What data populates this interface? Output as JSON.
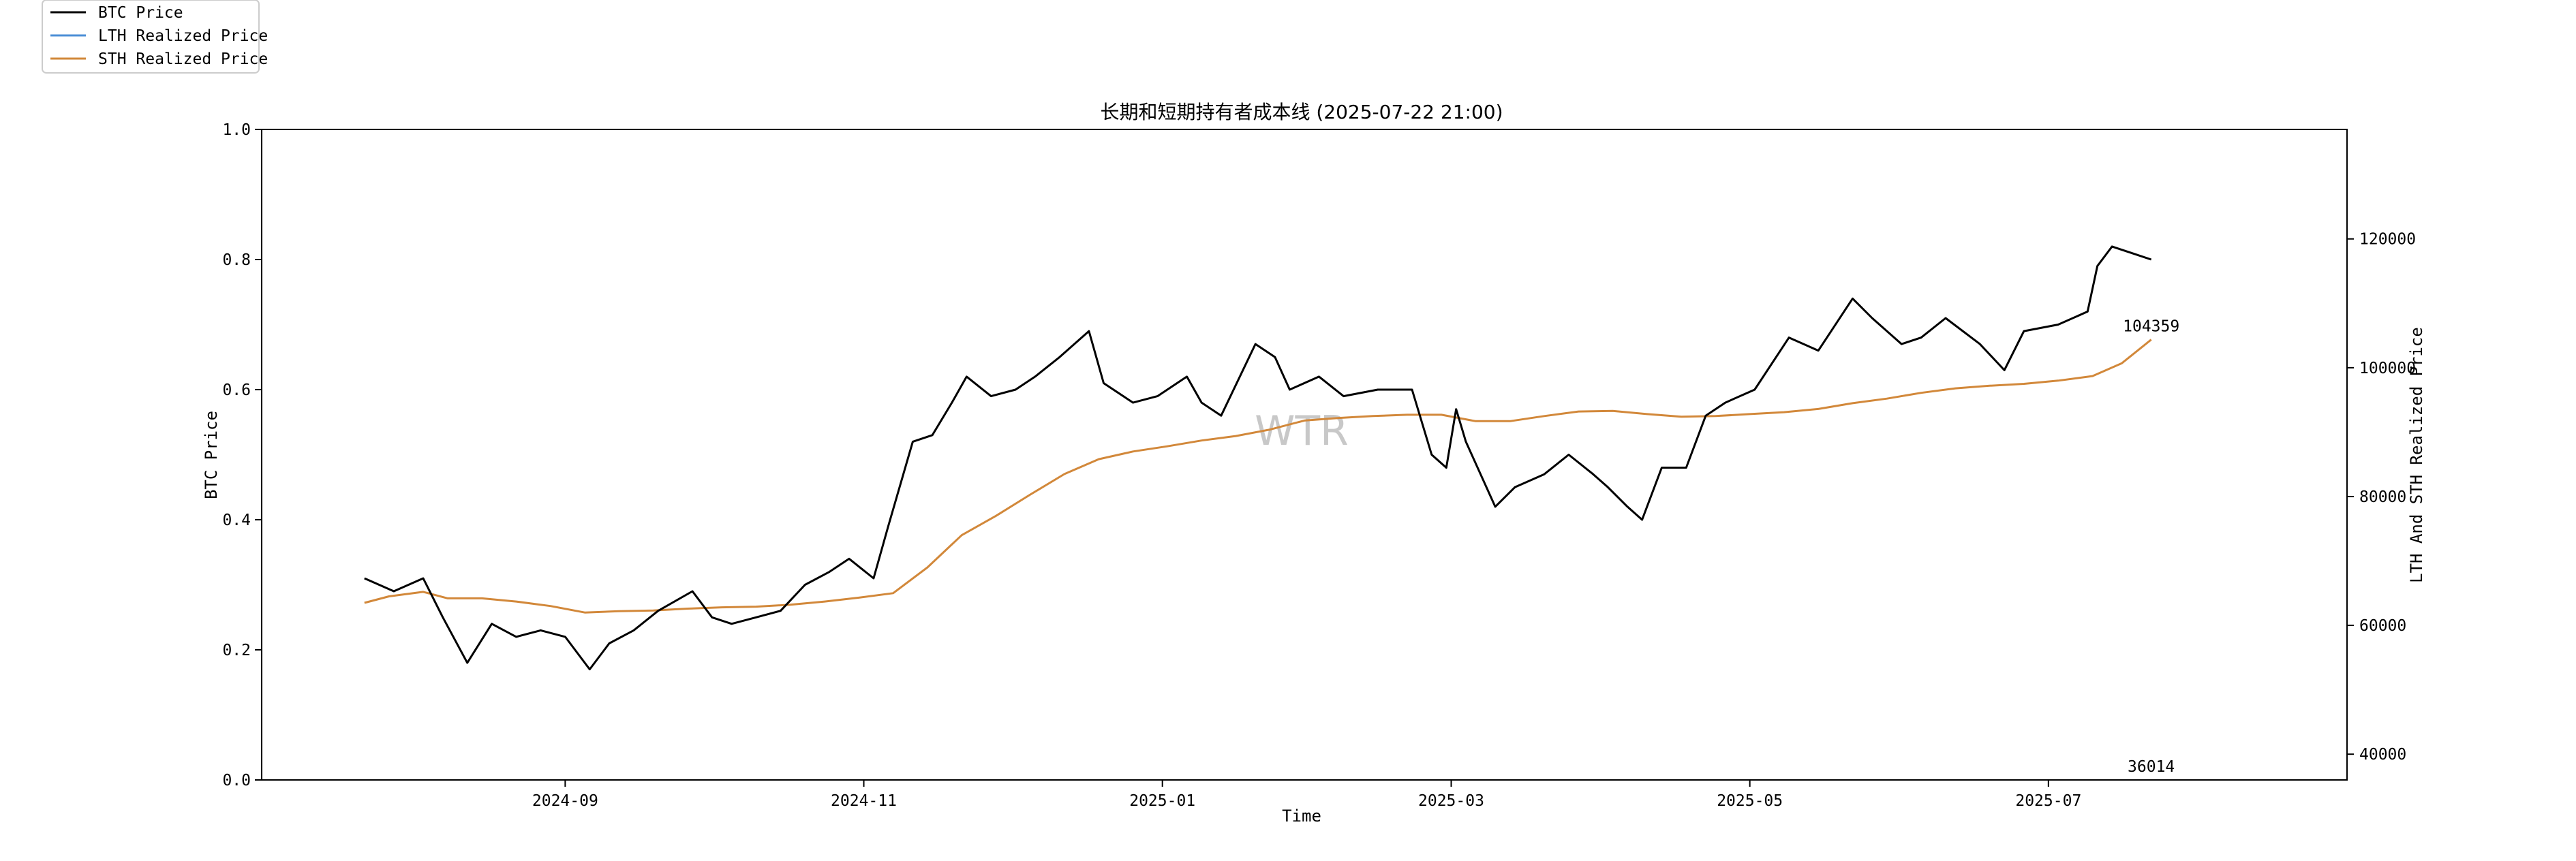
{
  "chart_data": {
    "type": "line",
    "title": "长期和短期持有者成本线 (2025-07-22 21:00)",
    "xlabel": "Time",
    "ylabel_left": "BTC Price",
    "ylabel_right": "LTH And STH Realized Price",
    "x_range": [
      "2024-07-01",
      "2025-08-31"
    ],
    "x_ticks": [
      "2024-09",
      "2024-11",
      "2025-01",
      "2025-03",
      "2025-05",
      "2025-07"
    ],
    "left_ylim": [
      0.0,
      1.0
    ],
    "left_ticks": [
      "0.0",
      "0.2",
      "0.4",
      "0.6",
      "0.8",
      "1.0"
    ],
    "right_ylim": [
      36000,
      137000
    ],
    "right_ticks": [
      "40000",
      "60000",
      "80000",
      "100000",
      "120000"
    ],
    "legend_position": "top-left",
    "grid": false,
    "watermark": "WTR",
    "annotations": [
      {
        "text": "104359",
        "x": "2025-07-22",
        "y": 104359,
        "axis": "right"
      },
      {
        "text": "36014",
        "x": "2025-07-22",
        "y": 36014,
        "axis": "right"
      }
    ],
    "series": [
      {
        "name": "BTC Price",
        "color": "#000000",
        "axis": "left",
        "x": [
          "2024-07-22",
          "2024-07-28",
          "2024-08-03",
          "2024-08-07",
          "2024-08-12",
          "2024-08-17",
          "2024-08-22",
          "2024-08-27",
          "2024-09-01",
          "2024-09-06",
          "2024-09-10",
          "2024-09-15",
          "2024-09-20",
          "2024-09-27",
          "2024-10-01",
          "2024-10-05",
          "2024-10-10",
          "2024-10-15",
          "2024-10-20",
          "2024-10-25",
          "2024-10-29",
          "2024-11-03",
          "2024-11-06",
          "2024-11-11",
          "2024-11-15",
          "2024-11-19",
          "2024-11-22",
          "2024-11-27",
          "2024-12-02",
          "2024-12-06",
          "2024-12-11",
          "2024-12-17",
          "2024-12-20",
          "2024-12-26",
          "2024-12-31",
          "2025-01-06",
          "2025-01-09",
          "2025-01-13",
          "2025-01-20",
          "2025-01-24",
          "2025-01-27",
          "2025-02-02",
          "2025-02-07",
          "2025-02-14",
          "2025-02-21",
          "2025-02-25",
          "2025-02-28",
          "2025-03-02",
          "2025-03-04",
          "2025-03-10",
          "2025-03-14",
          "2025-03-20",
          "2025-03-25",
          "2025-03-30",
          "2025-04-02",
          "2025-04-06",
          "2025-04-09",
          "2025-04-13",
          "2025-04-18",
          "2025-04-22",
          "2025-04-26",
          "2025-05-02",
          "2025-05-09",
          "2025-05-15",
          "2025-05-22",
          "2025-05-26",
          "2025-06-01",
          "2025-06-05",
          "2025-06-10",
          "2025-06-17",
          "2025-06-22",
          "2025-06-26",
          "2025-07-03",
          "2025-07-09",
          "2025-07-11",
          "2025-07-14",
          "2025-07-18",
          "2025-07-22"
        ],
        "values": [
          0.31,
          0.29,
          0.31,
          0.25,
          0.18,
          0.24,
          0.22,
          0.23,
          0.22,
          0.17,
          0.21,
          0.23,
          0.26,
          0.29,
          0.25,
          0.24,
          0.25,
          0.26,
          0.3,
          0.32,
          0.34,
          0.31,
          0.39,
          0.52,
          0.53,
          0.58,
          0.62,
          0.59,
          0.6,
          0.62,
          0.65,
          0.69,
          0.61,
          0.58,
          0.59,
          0.62,
          0.58,
          0.56,
          0.67,
          0.65,
          0.6,
          0.62,
          0.59,
          0.6,
          0.6,
          0.5,
          0.48,
          0.57,
          0.52,
          0.42,
          0.45,
          0.47,
          0.5,
          0.47,
          0.45,
          0.42,
          0.4,
          0.48,
          0.48,
          0.56,
          0.58,
          0.6,
          0.68,
          0.66,
          0.74,
          0.71,
          0.67,
          0.68,
          0.71,
          0.67,
          0.63,
          0.69,
          0.7,
          0.72,
          0.79,
          0.82,
          0.81,
          0.8
        ]
      },
      {
        "name": "LTH Realized Price",
        "color": "#4c8fd6",
        "axis": "right",
        "x": [],
        "values": []
      },
      {
        "name": "STH Realized Price",
        "color": "#d2883a",
        "axis": "right",
        "x": [
          "2024-07-22",
          "2024-07-27",
          "2024-08-03",
          "2024-08-08",
          "2024-08-15",
          "2024-08-22",
          "2024-08-29",
          "2024-09-05",
          "2024-09-12",
          "2024-09-19",
          "2024-09-26",
          "2024-10-03",
          "2024-10-10",
          "2024-10-17",
          "2024-10-24",
          "2024-10-31",
          "2024-11-07",
          "2024-11-14",
          "2024-11-21",
          "2024-11-28",
          "2024-12-05",
          "2024-12-12",
          "2024-12-19",
          "2024-12-26",
          "2025-01-02",
          "2025-01-09",
          "2025-01-16",
          "2025-01-23",
          "2025-01-30",
          "2025-02-06",
          "2025-02-13",
          "2025-02-20",
          "2025-02-27",
          "2025-03-06",
          "2025-03-13",
          "2025-03-20",
          "2025-03-27",
          "2025-04-03",
          "2025-04-10",
          "2025-04-17",
          "2025-04-24",
          "2025-05-01",
          "2025-05-08",
          "2025-05-15",
          "2025-05-22",
          "2025-05-29",
          "2025-06-05",
          "2025-06-12",
          "2025-06-19",
          "2025-06-26",
          "2025-07-03",
          "2025-07-10",
          "2025-07-16",
          "2025-07-22"
        ],
        "values": [
          63500,
          64500,
          65200,
          64200,
          64200,
          63700,
          63000,
          62000,
          62200,
          62300,
          62600,
          62800,
          62900,
          63200,
          63700,
          64300,
          65000,
          69000,
          74000,
          77000,
          80300,
          83500,
          85800,
          87000,
          87800,
          88700,
          89400,
          90400,
          91800,
          92200,
          92500,
          92700,
          92700,
          91700,
          91700,
          92500,
          93200,
          93300,
          92800,
          92400,
          92500,
          92800,
          93100,
          93600,
          94500,
          95200,
          96100,
          96800,
          97200,
          97500,
          98000,
          98700,
          100700,
          104359
        ]
      }
    ]
  }
}
